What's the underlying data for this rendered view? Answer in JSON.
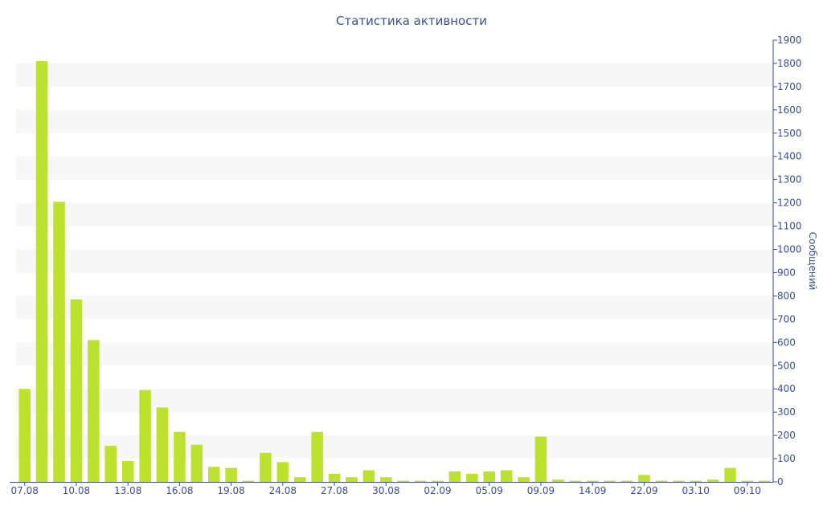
{
  "chart_data": {
    "type": "bar",
    "title": "Статистика активности",
    "xlabel": "",
    "ylabel": "Сообщений",
    "ylim": [
      0,
      1900
    ],
    "y_ticks": [
      0,
      100,
      200,
      300,
      400,
      500,
      600,
      700,
      800,
      900,
      1000,
      1100,
      1200,
      1300,
      1400,
      1500,
      1600,
      1700,
      1800,
      1900
    ],
    "y_axis_position": "right",
    "x_tick_labels": [
      "07.08",
      "10.08",
      "13.08",
      "16.08",
      "19.08",
      "24.08",
      "27.08",
      "30.08",
      "02.09",
      "05.09",
      "09.09",
      "14.09",
      "22.09",
      "03.10",
      "09.10"
    ],
    "x_tick_bar_index": [
      0,
      3,
      6,
      9,
      12,
      15,
      18,
      21,
      24,
      27,
      30,
      33,
      36,
      39,
      42
    ],
    "values": [
      400,
      1810,
      1205,
      785,
      610,
      155,
      90,
      395,
      320,
      215,
      160,
      65,
      60,
      5,
      125,
      85,
      20,
      215,
      35,
      20,
      50,
      20,
      5,
      5,
      5,
      45,
      35,
      45,
      50,
      20,
      195,
      10,
      5,
      5,
      5,
      5,
      30,
      5,
      5,
      5,
      10,
      60,
      5,
      5
    ],
    "colors": {
      "bar": "#bde22e",
      "band": "#f7f7f7",
      "text": "#3b4f8a",
      "axis": "#3b4f8a"
    },
    "grid": "alternating-bands"
  }
}
